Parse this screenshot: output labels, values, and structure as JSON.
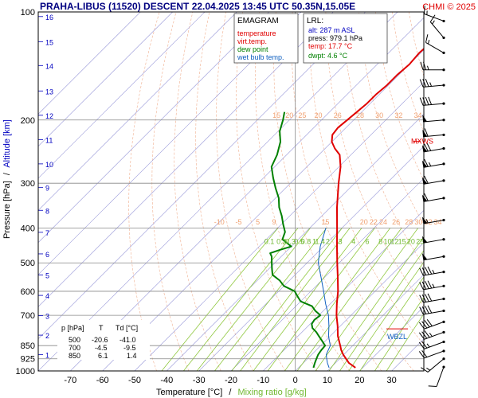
{
  "header": {
    "title": "PRAHA-LIBUS (11520)   DESCENT   22.04.2025 13:45 UTC  50.35N,15.05E",
    "credit": "CHMI © 2025"
  },
  "legend": {
    "heading": "EMAGRAM",
    "items": [
      {
        "label": "temperature",
        "color": "#e00000"
      },
      {
        "label": "virt.temp.",
        "color": "#e00000"
      },
      {
        "label": "dew point",
        "color": "#008000"
      },
      {
        "label": "wet bulb temp.",
        "color": "#1060c0"
      }
    ]
  },
  "lrl": {
    "heading": "LRL:",
    "lines": [
      {
        "text": "alt: 287 m ASL",
        "color": "#0000c0"
      },
      {
        "text": "press: 979.1 hPa",
        "color": "#000000"
      },
      {
        "text": "temp: 17.7 °C",
        "color": "#e00000"
      },
      {
        "text": "dwpt: 4.6 °C",
        "color": "#008000"
      }
    ]
  },
  "table": {
    "headers": [
      "p [hPa]",
      "T",
      "Td [°C]"
    ],
    "rows": [
      [
        "500",
        "-20.6",
        "-41.0"
      ],
      [
        "700",
        "-4.5",
        "-9.5"
      ],
      [
        "850",
        "6.1",
        "1.4"
      ]
    ]
  },
  "labels": {
    "mxws": "MXWS",
    "wbzl": "WBZL",
    "ylabel_pressure": "Pressure [hPa]",
    "ylabel_sep": "/",
    "ylabel_altitude": "Altitude [km]",
    "xlabel_temp": "Temperature [°C]",
    "xlabel_sep": "/",
    "xlabel_mix": "Mixing ratio [g/kg]"
  },
  "colors": {
    "temperature": "#e00000",
    "dewpoint": "#008000",
    "wetbulb": "#1060c0",
    "isotherm": "#9898d8",
    "adiabat": "#f0b090",
    "mixing": "#90c840",
    "grid": "#888888",
    "title": "#000080",
    "credit": "#e00000"
  },
  "chart_data": {
    "type": "line",
    "title": "PRAHA-LIBUS (11520)   DESCENT   22.04.2025 13:45 UTC  50.35N,15.05E",
    "xlabel": "Temperature [°C]",
    "xlabel2": "Mixing ratio [g/kg]",
    "ylabel": "Pressure [hPa]",
    "ylabel2": "Altitude [km]",
    "xlim": [
      -80,
      40
    ],
    "ylim": [
      1000,
      100
    ],
    "yscale": "log",
    "skew": "45° skewed isotherms",
    "x_ticks": [
      -70,
      -60,
      -50,
      -40,
      -30,
      -20,
      -10,
      0,
      10,
      20,
      30
    ],
    "pressure_ticks": [
      100,
      200,
      300,
      400,
      500,
      600,
      700,
      850,
      925,
      1000
    ],
    "altitude_ticks": [
      {
        "km": "1",
        "p": 900
      },
      {
        "km": "2",
        "p": 795
      },
      {
        "km": "3",
        "p": 701
      },
      {
        "km": "4",
        "p": 616
      },
      {
        "km": "5",
        "p": 540
      },
      {
        "km": "6",
        "p": 472
      },
      {
        "km": "7",
        "p": 411
      },
      {
        "km": "8",
        "p": 357
      },
      {
        "km": "9",
        "p": 308
      },
      {
        "km": "10",
        "p": 265
      },
      {
        "km": "11",
        "p": 227
      },
      {
        "km": "12",
        "p": 194
      },
      {
        "km": "13",
        "p": 166
      },
      {
        "km": "14",
        "p": 141
      },
      {
        "km": "15",
        "p": 121
      },
      {
        "km": "16",
        "p": 103
      }
    ],
    "mixing_ratio_labels": [
      {
        "label": "0.1",
        "temp": -50.8,
        "p": 415
      },
      {
        "label": "0.2",
        "temp": -47.0,
        "p": 415
      },
      {
        "label": "0.3",
        "temp": -44.2,
        "p": 415
      },
      {
        "label": "0.5",
        "temp": -41.5,
        "p": 415
      },
      {
        "label": "0.8",
        "temp": -39.4,
        "p": 415
      },
      {
        "label": "1",
        "temp": -36.8,
        "p": 415
      },
      {
        "label": "1.4",
        "temp": -35.0,
        "p": 415
      },
      {
        "label": "2",
        "temp": -32.6,
        "p": 415
      },
      {
        "label": "3",
        "temp": -28.7,
        "p": 415
      },
      {
        "label": "4",
        "temp": -24.6,
        "p": 415
      },
      {
        "label": "6",
        "temp": -20.3,
        "p": 415
      },
      {
        "label": "8",
        "temp": -16.2,
        "p": 415
      },
      {
        "label": "10",
        "temp": -14.0,
        "p": 415
      },
      {
        "label": "12",
        "temp": -11.8,
        "p": 415
      },
      {
        "label": "15",
        "temp": -9.5,
        "p": 415
      },
      {
        "label": "20",
        "temp": -6.7,
        "p": 415
      },
      {
        "label": "25",
        "temp": -3.9,
        "p": 415
      }
    ],
    "adiabat_labels_upper": [
      {
        "label": "15",
        "temp": -84,
        "p": 200
      },
      {
        "label": "20",
        "temp": -80,
        "p": 200
      },
      {
        "label": "25",
        "temp": -76,
        "p": 200
      },
      {
        "label": "20",
        "temp": -71,
        "p": 200
      },
      {
        "label": "26",
        "temp": -65,
        "p": 200
      },
      {
        "label": "28",
        "temp": -58,
        "p": 200
      },
      {
        "label": "30",
        "temp": -52,
        "p": 200
      },
      {
        "label": "32",
        "temp": -46,
        "p": 200
      },
      {
        "label": "34",
        "temp": -40,
        "p": 200
      }
    ],
    "adiabat_labels_lower": [
      {
        "label": "-10",
        "temp": -70,
        "p": 385
      },
      {
        "label": "-5",
        "temp": -64,
        "p": 385
      },
      {
        "label": "5",
        "temp": -58,
        "p": 385
      },
      {
        "label": "9",
        "temp": -53,
        "p": 385
      },
      {
        "label": "15",
        "temp": -37,
        "p": 385
      },
      {
        "label": "20",
        "temp": -25,
        "p": 385
      },
      {
        "label": "22",
        "temp": -22,
        "p": 385
      },
      {
        "label": "24",
        "temp": -19,
        "p": 385
      },
      {
        "label": "26",
        "temp": -15,
        "p": 385
      },
      {
        "label": "28",
        "temp": -11,
        "p": 385
      },
      {
        "label": "30",
        "temp": -8,
        "p": 385
      },
      {
        "label": "32",
        "temp": -5,
        "p": 385
      },
      {
        "label": "34",
        "temp": -2,
        "p": 385
      }
    ],
    "series": [
      {
        "name": "temperature",
        "color": "#e00000",
        "points": [
          {
            "p": 979.1,
            "t": 17.7
          },
          {
            "p": 950,
            "t": 14.2
          },
          {
            "p": 925,
            "t": 12.0
          },
          {
            "p": 900,
            "t": 9.8
          },
          {
            "p": 875,
            "t": 7.8
          },
          {
            "p": 850,
            "t": 6.1
          },
          {
            "p": 800,
            "t": 2.4
          },
          {
            "p": 750,
            "t": -0.8
          },
          {
            "p": 700,
            "t": -4.5
          },
          {
            "p": 650,
            "t": -8.0
          },
          {
            "p": 600,
            "t": -11.5
          },
          {
            "p": 550,
            "t": -15.8
          },
          {
            "p": 500,
            "t": -20.6
          },
          {
            "p": 450,
            "t": -25.8
          },
          {
            "p": 400,
            "t": -31.5
          },
          {
            "p": 350,
            "t": -38.0
          },
          {
            "p": 300,
            "t": -45.0
          },
          {
            "p": 270,
            "t": -49.5
          },
          {
            "p": 250,
            "t": -53.5
          },
          {
            "p": 240,
            "t": -57.0
          },
          {
            "p": 230,
            "t": -60.0
          },
          {
            "p": 220,
            "t": -62.0
          },
          {
            "p": 210,
            "t": -62.5
          },
          {
            "p": 200,
            "t": -62.0
          },
          {
            "p": 190,
            "t": -61.5
          },
          {
            "p": 180,
            "t": -61.0
          },
          {
            "p": 170,
            "t": -61.0
          },
          {
            "p": 160,
            "t": -60.5
          },
          {
            "p": 150,
            "t": -60.5
          },
          {
            "p": 140,
            "t": -60.0
          },
          {
            "p": 130,
            "t": -60.5
          },
          {
            "p": 120,
            "t": -60.0
          },
          {
            "p": 110,
            "t": -60.5
          },
          {
            "p": 100,
            "t": -60.5
          }
        ]
      },
      {
        "name": "dew point",
        "color": "#008000",
        "points": [
          {
            "p": 979.1,
            "t": 4.6
          },
          {
            "p": 950,
            "t": 3.6
          },
          {
            "p": 925,
            "t": 2.8
          },
          {
            "p": 900,
            "t": 2.0
          },
          {
            "p": 875,
            "t": 1.6
          },
          {
            "p": 850,
            "t": 1.4
          },
          {
            "p": 820,
            "t": -1.5
          },
          {
            "p": 800,
            "t": -3.5
          },
          {
            "p": 780,
            "t": -5.5
          },
          {
            "p": 760,
            "t": -8.0
          },
          {
            "p": 740,
            "t": -9.5
          },
          {
            "p": 720,
            "t": -10.0
          },
          {
            "p": 700,
            "t": -9.5
          },
          {
            "p": 680,
            "t": -12.5
          },
          {
            "p": 660,
            "t": -15.0
          },
          {
            "p": 640,
            "t": -20.0
          },
          {
            "p": 620,
            "t": -22.5
          },
          {
            "p": 600,
            "t": -25.0
          },
          {
            "p": 580,
            "t": -30.0
          },
          {
            "p": 560,
            "t": -33.0
          },
          {
            "p": 540,
            "t": -37.0
          },
          {
            "p": 520,
            "t": -39.0
          },
          {
            "p": 500,
            "t": -41.0
          },
          {
            "p": 480,
            "t": -43.0
          },
          {
            "p": 470,
            "t": -44.5
          },
          {
            "p": 460,
            "t": -42.5
          },
          {
            "p": 450,
            "t": -40.0
          },
          {
            "p": 440,
            "t": -42.5
          },
          {
            "p": 430,
            "t": -45.0
          },
          {
            "p": 410,
            "t": -46.5
          },
          {
            "p": 390,
            "t": -49.5
          },
          {
            "p": 370,
            "t": -52.5
          },
          {
            "p": 350,
            "t": -56.0
          },
          {
            "p": 330,
            "t": -59.0
          },
          {
            "p": 310,
            "t": -63.0
          },
          {
            "p": 290,
            "t": -67.0
          },
          {
            "p": 270,
            "t": -71.0
          },
          {
            "p": 250,
            "t": -73.0
          },
          {
            "p": 230,
            "t": -76.0
          },
          {
            "p": 215,
            "t": -79.5
          },
          {
            "p": 200,
            "t": -82.0
          },
          {
            "p": 190,
            "t": -84.0
          }
        ]
      },
      {
        "name": "wet bulb temp.",
        "color": "#1060c0",
        "points": [
          {
            "p": 979.1,
            "t": 9.5
          },
          {
            "p": 950,
            "t": 7.5
          },
          {
            "p": 925,
            "t": 6.0
          },
          {
            "p": 900,
            "t": 4.5
          },
          {
            "p": 850,
            "t": 3.0
          },
          {
            "p": 800,
            "t": -0.5
          },
          {
            "p": 750,
            "t": -3.5
          },
          {
            "p": 700,
            "t": -7.0
          },
          {
            "p": 650,
            "t": -11.5
          },
          {
            "p": 600,
            "t": -16.0
          },
          {
            "p": 550,
            "t": -21.0
          },
          {
            "p": 500,
            "t": -26.5
          },
          {
            "p": 450,
            "t": -31.0
          },
          {
            "p": 400,
            "t": -35.0
          }
        ]
      }
    ],
    "wind_barbs": [
      {
        "p": 975,
        "dir": 200,
        "kt": 10
      },
      {
        "p": 925,
        "dir": 230,
        "kt": 15
      },
      {
        "p": 880,
        "dir": 250,
        "kt": 20
      },
      {
        "p": 830,
        "dir": 250,
        "kt": 25
      },
      {
        "p": 780,
        "dir": 250,
        "kt": 35
      },
      {
        "p": 730,
        "dir": 250,
        "kt": 40
      },
      {
        "p": 680,
        "dir": 260,
        "kt": 40
      },
      {
        "p": 630,
        "dir": 260,
        "kt": 40
      },
      {
        "p": 580,
        "dir": 260,
        "kt": 45
      },
      {
        "p": 530,
        "dir": 260,
        "kt": 45
      },
      {
        "p": 480,
        "dir": 260,
        "kt": 50
      },
      {
        "p": 430,
        "dir": 260,
        "kt": 50
      },
      {
        "p": 380,
        "dir": 260,
        "kt": 55
      },
      {
        "p": 330,
        "dir": 260,
        "kt": 60
      },
      {
        "p": 295,
        "dir": 260,
        "kt": 60
      },
      {
        "p": 265,
        "dir": 260,
        "kt": 65
      },
      {
        "p": 240,
        "dir": 260,
        "kt": 70
      },
      {
        "p": 220,
        "dir": 265,
        "kt": 60
      },
      {
        "p": 200,
        "dir": 265,
        "kt": 50
      },
      {
        "p": 180,
        "dir": 265,
        "kt": 40
      },
      {
        "p": 160,
        "dir": 265,
        "kt": 35
      },
      {
        "p": 145,
        "dir": 270,
        "kt": 25
      },
      {
        "p": 130,
        "dir": 300,
        "kt": 15
      },
      {
        "p": 118,
        "dir": 320,
        "kt": 15
      },
      {
        "p": 106,
        "dir": 290,
        "kt": 15
      }
    ],
    "mxws_p": 233,
    "wbzl_p": 795
  }
}
